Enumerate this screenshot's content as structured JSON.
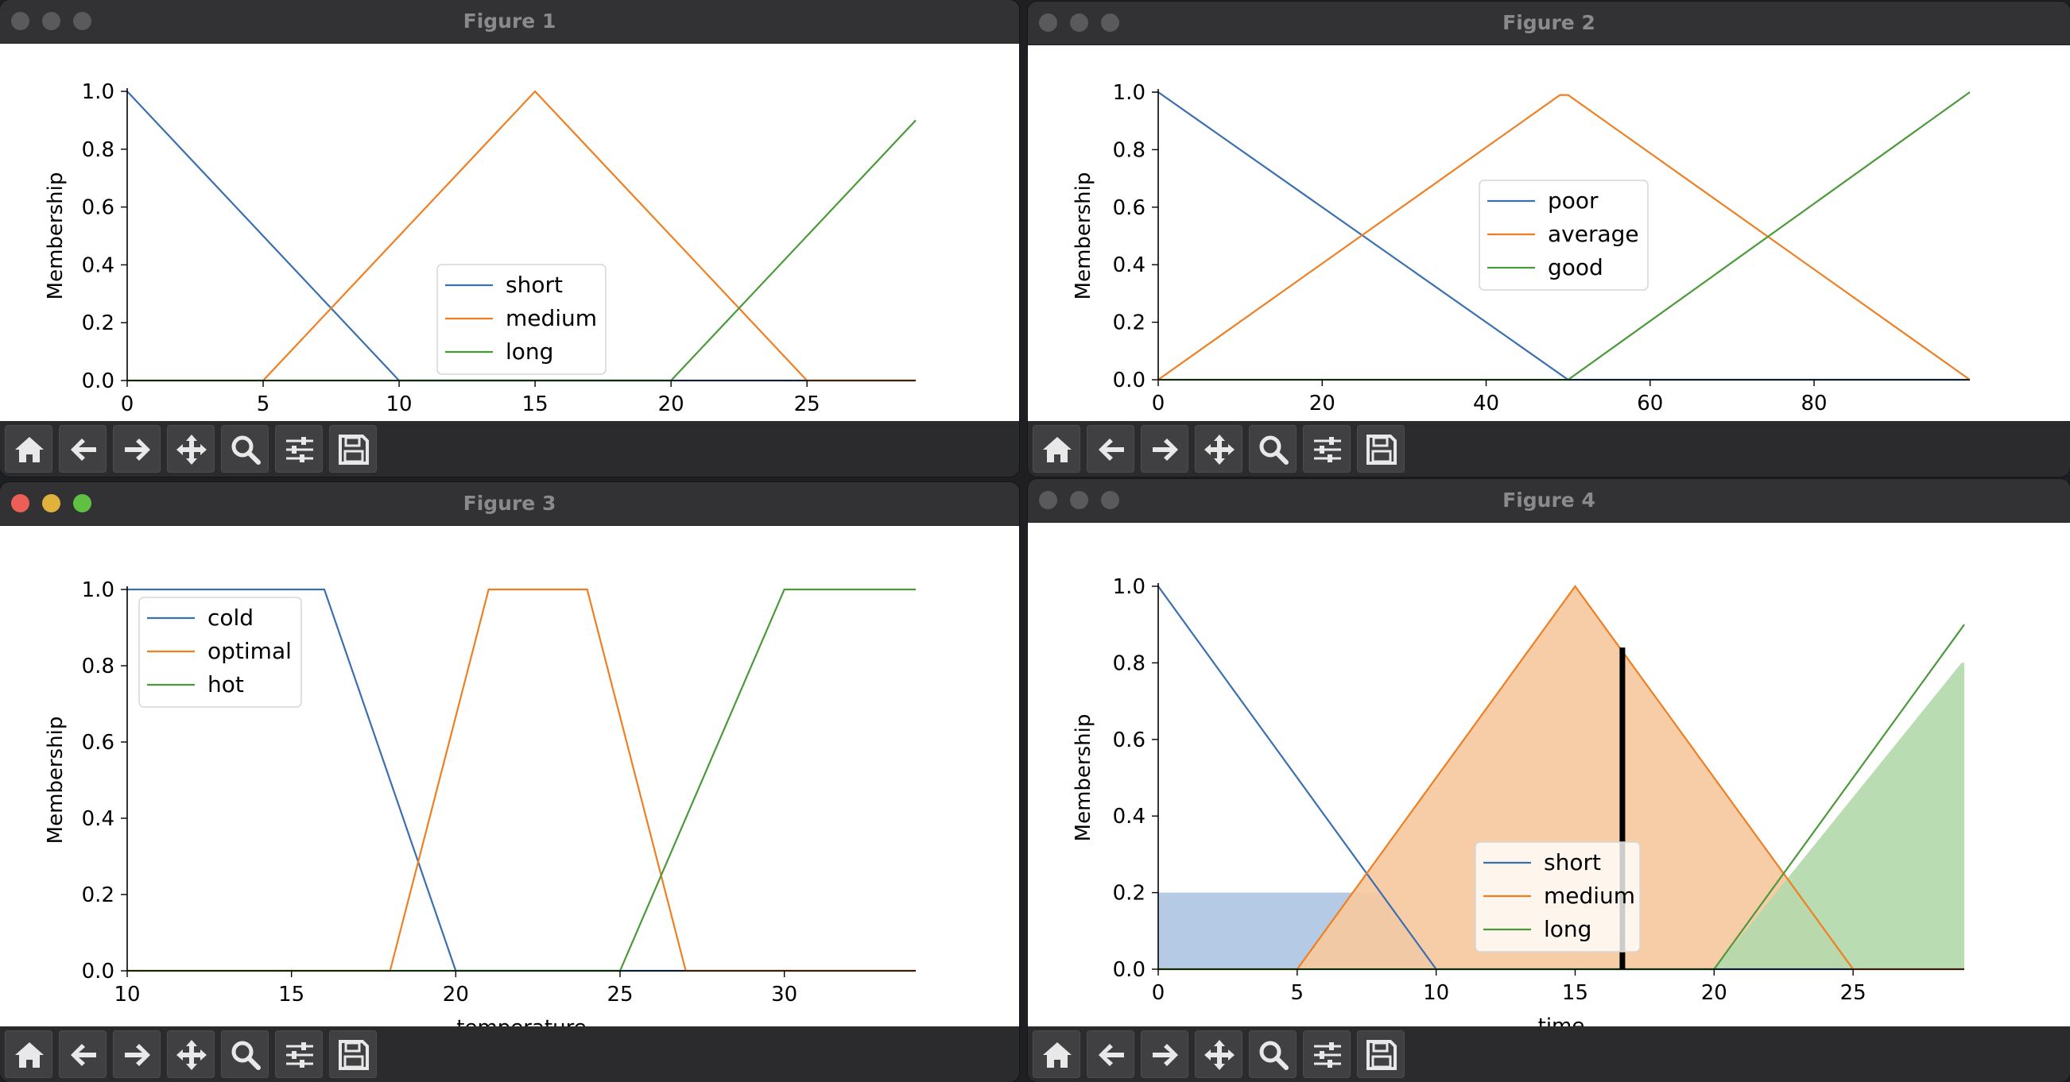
{
  "toolbar": {
    "buttons": [
      {
        "name": "home-button",
        "icon": "home-icon"
      },
      {
        "name": "back-button",
        "icon": "arrow-left-icon"
      },
      {
        "name": "forward-button",
        "icon": "arrow-right-icon"
      },
      {
        "name": "pan-button",
        "icon": "move-icon"
      },
      {
        "name": "zoom-button",
        "icon": "magnifier-icon"
      },
      {
        "name": "configure-subplots-button",
        "icon": "sliders-icon"
      },
      {
        "name": "save-button",
        "icon": "floppy-disk-icon"
      }
    ]
  },
  "figures": [
    {
      "title": "Figure 1",
      "active": false
    },
    {
      "title": "Figure 2",
      "active": false
    },
    {
      "title": "Figure 3",
      "active": true
    },
    {
      "title": "Figure 4",
      "active": false
    }
  ],
  "colors": {
    "blue": "#3a6fb0",
    "orange": "#ef7f22",
    "green": "#4a9a3a",
    "black": "#000000"
  },
  "chart_data": [
    {
      "type": "line",
      "xlim": [
        0,
        29
      ],
      "ylim": [
        0,
        1
      ],
      "xticks": [
        0,
        5,
        10,
        15,
        20,
        25
      ],
      "yticks": [
        0.0,
        0.2,
        0.4,
        0.6,
        0.8,
        1.0
      ],
      "ytick_labels": [
        "0.0",
        "0.2",
        "0.4",
        "0.6",
        "0.8",
        "1.0"
      ],
      "xlabel": "",
      "ylabel": "Membership",
      "legend_position": "lower-center",
      "series": [
        {
          "name": "short",
          "color": "#3a6fb0",
          "x": [
            0,
            10,
            29
          ],
          "y": [
            1,
            0,
            0
          ]
        },
        {
          "name": "medium",
          "color": "#ef7f22",
          "x": [
            0,
            5,
            15,
            25,
            29
          ],
          "y": [
            0,
            0,
            1,
            0,
            0
          ]
        },
        {
          "name": "long",
          "color": "#4a9a3a",
          "x": [
            0,
            20,
            29
          ],
          "y": [
            0,
            0,
            0.9
          ]
        }
      ]
    },
    {
      "type": "line",
      "xlim": [
        0,
        99
      ],
      "ylim": [
        0,
        1
      ],
      "xticks": [
        0,
        20,
        40,
        60,
        80
      ],
      "yticks": [
        0.0,
        0.2,
        0.4,
        0.6,
        0.8,
        1.0
      ],
      "ytick_labels": [
        "0.0",
        "0.2",
        "0.4",
        "0.6",
        "0.8",
        "1.0"
      ],
      "xlabel": "",
      "ylabel": "Membership",
      "legend_position": "upper-center",
      "series": [
        {
          "name": "poor",
          "color": "#3a6fb0",
          "x": [
            0,
            50,
            99
          ],
          "y": [
            1,
            0,
            0
          ]
        },
        {
          "name": "average",
          "color": "#ef7f22",
          "x": [
            0,
            49,
            50,
            99
          ],
          "y": [
            0,
            0.99,
            0.99,
            0
          ]
        },
        {
          "name": "good",
          "color": "#4a9a3a",
          "x": [
            0,
            50,
            99
          ],
          "y": [
            0,
            0,
            1
          ]
        }
      ]
    },
    {
      "type": "line",
      "xlim": [
        10,
        34
      ],
      "ylim": [
        0,
        1
      ],
      "xticks": [
        10,
        15,
        20,
        25,
        30
      ],
      "yticks": [
        0.0,
        0.2,
        0.4,
        0.6,
        0.8,
        1.0
      ],
      "ytick_labels": [
        "0.0",
        "0.2",
        "0.4",
        "0.6",
        "0.8",
        "1.0"
      ],
      "xlabel": "temperature",
      "ylabel": "Membership",
      "legend_position": "upper-left",
      "series": [
        {
          "name": "cold",
          "color": "#3a6fb0",
          "x": [
            10,
            16,
            20,
            34
          ],
          "y": [
            1,
            1,
            0,
            0
          ]
        },
        {
          "name": "optimal",
          "color": "#ef7f22",
          "x": [
            10,
            18,
            21,
            24,
            27,
            34
          ],
          "y": [
            0,
            0,
            1,
            1,
            0,
            0
          ]
        },
        {
          "name": "hot",
          "color": "#4a9a3a",
          "x": [
            10,
            25,
            30,
            34
          ],
          "y": [
            0,
            0,
            1,
            1
          ]
        }
      ]
    },
    {
      "type": "area",
      "xlim": [
        0,
        29
      ],
      "ylim": [
        0,
        1
      ],
      "xticks": [
        0,
        5,
        10,
        15,
        20,
        25
      ],
      "yticks": [
        0.0,
        0.2,
        0.4,
        0.6,
        0.8,
        1.0
      ],
      "ytick_labels": [
        "0.0",
        "0.2",
        "0.4",
        "0.6",
        "0.8",
        "1.0"
      ],
      "xlabel": "time",
      "ylabel": "Membership",
      "legend_position": "lower-center",
      "series": [
        {
          "name": "short",
          "color": "#3a6fb0",
          "x": [
            0,
            10,
            29
          ],
          "y": [
            1,
            0,
            0
          ]
        },
        {
          "name": "medium",
          "color": "#ef7f22",
          "x": [
            0,
            5,
            15,
            25,
            29
          ],
          "y": [
            0,
            0,
            1,
            0,
            0
          ]
        },
        {
          "name": "long",
          "color": "#4a9a3a",
          "x": [
            0,
            20,
            29
          ],
          "y": [
            0,
            0,
            0.9
          ]
        }
      ],
      "fills": [
        {
          "color": "#aec6e3",
          "x": [
            0,
            8,
            10
          ],
          "y": [
            0.2,
            0.2,
            0
          ]
        },
        {
          "color": "#f6c9a0",
          "x": [
            5,
            15,
            25
          ],
          "y": [
            0,
            1,
            0
          ]
        },
        {
          "color": "#b3d9ab",
          "x": [
            20,
            28.9,
            29
          ],
          "y": [
            0,
            0.8,
            0.8
          ]
        }
      ],
      "marker_line": {
        "x": 16.7,
        "y": 0.84,
        "color": "#000000"
      }
    }
  ]
}
